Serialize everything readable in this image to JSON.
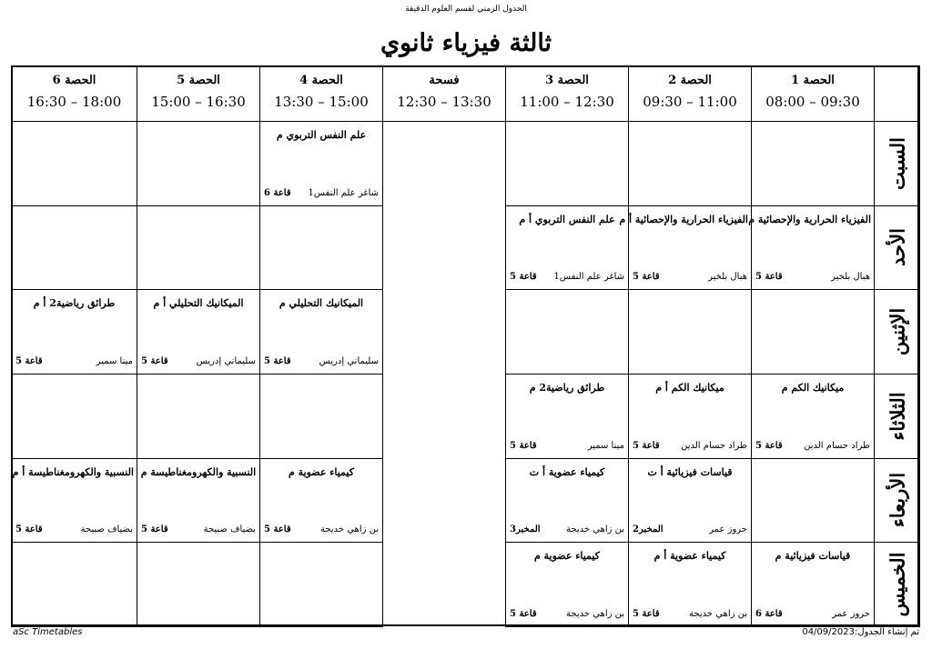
{
  "header": {
    "caption": "الجدول الزمني لقسم العلوم الدقيقة",
    "title": "ثالثة فيزياء ثانوي"
  },
  "table": {
    "periods": [
      {
        "name": "الحصة 1",
        "time": "08:00 – 09:30"
      },
      {
        "name": "الحصة 2",
        "time": "09:30 – 11:00"
      },
      {
        "name": "الحصة 3",
        "time": "11:00 – 12:30"
      },
      {
        "name": "الحصة 4",
        "time": "13:30 – 15:00"
      },
      {
        "name": "الحصة 5",
        "time": "15:00 – 16:30"
      },
      {
        "name": "الحصة 6",
        "time": "16:30 – 18:00"
      }
    ],
    "break": {
      "name": "فسحة",
      "time": "12:30 – 13:30"
    },
    "rows": [
      {
        "day": "السبت",
        "cells": [
          null,
          null,
          null,
          {
            "subject": "علم النفس التربوي م",
            "teacher": "شاغر علم النفس1",
            "room": "قاعة 6"
          },
          null,
          null
        ]
      },
      {
        "day": "الأحد",
        "cells": [
          {
            "subject": "الفيزياء الحرارية والإحصائية م",
            "teacher": "هبال بلخير",
            "room": "قاعة 5"
          },
          {
            "subject": "الفيزياء الحرارية والإحصائية أ م",
            "teacher": "هبال بلخير",
            "room": "قاعة 5"
          },
          {
            "subject": "علم النفس التربوي أ م",
            "teacher": "شاغر علم النفس1",
            "room": "قاعة 5"
          },
          null,
          null,
          null
        ]
      },
      {
        "day": "الإثنين",
        "cells": [
          null,
          null,
          null,
          {
            "subject": "الميكانيك التحليلي م",
            "teacher": "سليماني إدريس",
            "room": "قاعة 5"
          },
          {
            "subject": "الميكانيك التحليلي أ م",
            "teacher": "سليماني إدريس",
            "room": "قاعة 5"
          },
          {
            "subject": "طرائق رياضية2 أ م",
            "teacher": "مينا سمير",
            "room": "قاعة 5"
          }
        ]
      },
      {
        "day": "الثلاثاء",
        "cells": [
          {
            "subject": "ميكانيك الكم م",
            "teacher": "طراد حسام الدين",
            "room": "قاعة 5"
          },
          {
            "subject": "ميكانيك الكم أ م",
            "teacher": "طراد حسام الدين",
            "room": "قاعة 5"
          },
          {
            "subject": "طرائق رياضية2 م",
            "teacher": "مينا سمير",
            "room": "قاعة 5"
          },
          null,
          null,
          null
        ]
      },
      {
        "day": "الأربعاء",
        "cells": [
          null,
          {
            "subject": "قياسات فيزيائية أ ت",
            "teacher": "حروز عمر",
            "room": "المخبر2"
          },
          {
            "subject": "كيمياء عضوية أ ت",
            "teacher": "بن زاهي خديجة",
            "room": "المخبر3"
          },
          {
            "subject": "كيمياء عضوية م",
            "teacher": "بن زاهي خديجة",
            "room": "قاعة 5"
          },
          {
            "subject": "النسبية والكهرومغناطيسة م",
            "teacher": "بضياف صبيحة",
            "room": "قاعة 5"
          },
          {
            "subject": "النسبية والكهرومغناطيسة  أ م",
            "teacher": "بضياف صبيحة",
            "room": "قاعة 5"
          }
        ]
      },
      {
        "day": "الخميس",
        "cells": [
          {
            "subject": "قياسات فيزيائية م",
            "teacher": "حروز عمر",
            "room": "قاعة 6"
          },
          {
            "subject": "كيمياء عضوية أ م",
            "teacher": "بن زاهي خديجة",
            "room": "قاعة 5"
          },
          {
            "subject": "كيمياء عضوية م",
            "teacher": "بن زاهي خديجة",
            "room": "قاعة 5"
          },
          null,
          null,
          null
        ]
      }
    ]
  },
  "footer": {
    "software": "aSc Timetables",
    "created": "تم إنشاء الجدول:04/09/2023"
  }
}
